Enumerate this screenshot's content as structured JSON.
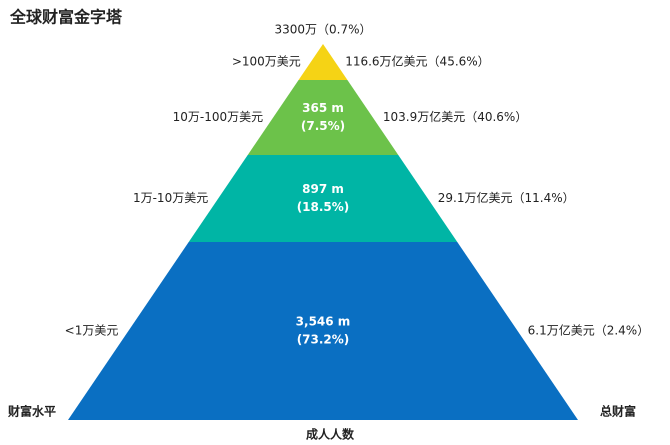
{
  "title": "全球财富金字塔",
  "tiers": [
    {
      "level": ">100万美元",
      "adults": [
        "3300万（0.7%）"
      ],
      "wealth": "116.6万亿美元（45.6%）",
      "color": "#f5d315"
    },
    {
      "level": "10万-100万美元",
      "adults": [
        "365 m",
        "(7.5%)"
      ],
      "wealth": "103.9万亿美元（40.6%）",
      "color": "#6cc24a"
    },
    {
      "level": "1万-10万美元",
      "adults": [
        "897 m",
        "(18.5%)"
      ],
      "wealth": "29.1万亿美元（11.4%）",
      "color": "#00b5a5"
    },
    {
      "level": "<1万美元",
      "adults": [
        "3,546 m",
        "(73.2%)"
      ],
      "wealth": "6.1万亿美元（2.4%）",
      "color": "#0a6fc2"
    }
  ],
  "axis": {
    "left": "财富水平",
    "right": "总财富",
    "bottom": "成人人数"
  }
}
